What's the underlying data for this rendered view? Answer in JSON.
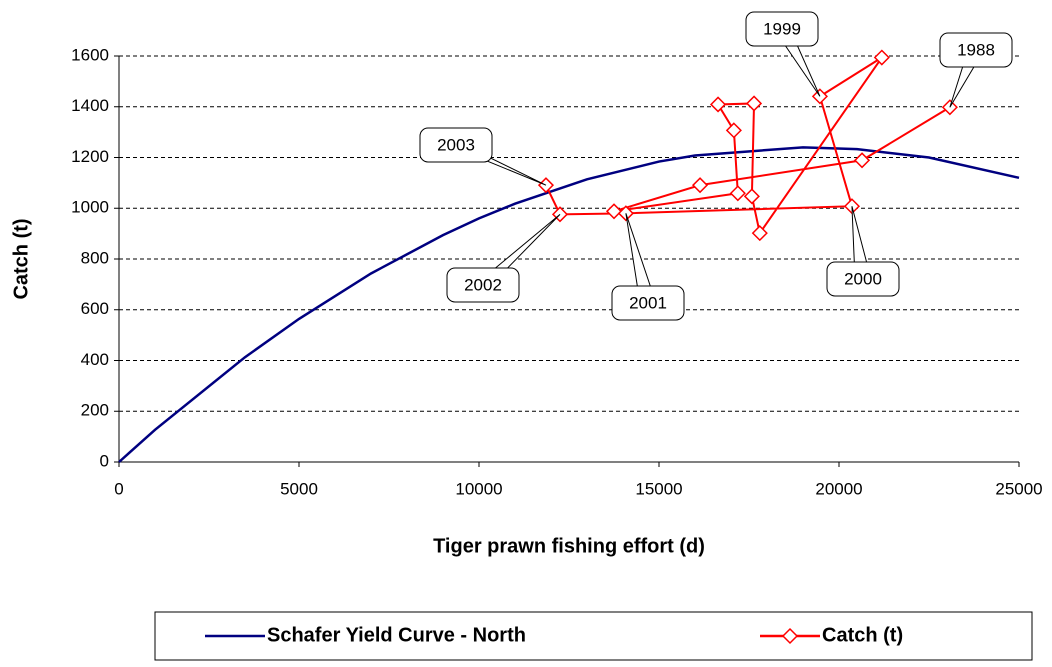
{
  "chart_data": {
    "type": "line",
    "x_label": "Tiger prawn fishing effort (d)",
    "y_label": "Catch (t)",
    "xlim": [
      0,
      25000
    ],
    "xticks": [
      0,
      5000,
      10000,
      15000,
      20000,
      25000
    ],
    "ylim": [
      0,
      1600
    ],
    "yticks": [
      0,
      200,
      400,
      600,
      800,
      1000,
      1200,
      1400,
      1600
    ],
    "grid": true,
    "legend": "bottom",
    "series": [
      {
        "name": "Schafer Yield Curve - North",
        "color": "#000080",
        "marker": "none",
        "x": [
          0,
          1000,
          3500,
          5000,
          7000,
          9000,
          10000,
          11000,
          13000,
          15000,
          16000,
          19000,
          20500,
          22500,
          25000
        ],
        "values": [
          0,
          127,
          413,
          564,
          743,
          894,
          960,
          1018,
          1114,
          1184,
          1208,
          1240,
          1233,
          1200,
          1120
        ]
      },
      {
        "name": "Catch (t)",
        "color": "#ff0000",
        "marker": "diamond",
        "x": [
          23080,
          20640,
          16140,
          13750,
          17190,
          17080,
          16640,
          17640,
          17580,
          17800,
          21190,
          19470,
          20360,
          14080,
          12250,
          11860
        ],
        "values": [
          1398,
          1189,
          1091,
          988,
          1059,
          1307,
          1409,
          1413,
          1047,
          902,
          1594,
          1441,
          1008,
          980,
          976,
          1091
        ]
      }
    ],
    "annotations": [
      "1988",
      "1999",
      "2000",
      "2001",
      "2002",
      "2003"
    ]
  }
}
